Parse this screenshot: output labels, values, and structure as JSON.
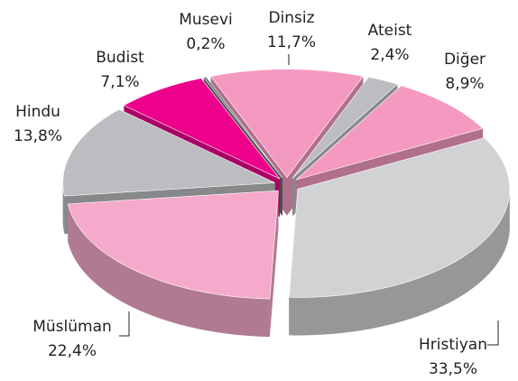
{
  "chart_data": {
    "type": "pie3d",
    "categories": [
      "Dinsiz",
      "Ateist",
      "Diğer",
      "Hristiyan",
      "Müslüman",
      "Hindu",
      "Budist",
      "Musevi"
    ],
    "values": [
      11.7,
      2.4,
      8.9,
      33.5,
      22.4,
      13.8,
      7.1,
      0.2
    ],
    "value_labels": [
      "11,7%",
      "2,4%",
      "8,9%",
      "33,5%",
      "22,4%",
      "13,8%",
      "7,1%",
      "0,2%"
    ],
    "colors": [
      "#f49ac1",
      "#bcbdc0",
      "#f49ac1",
      "#d1d2d4",
      "#f5aacb",
      "#bcbdc0",
      "#ec008c",
      "#6d6e70"
    ]
  }
}
